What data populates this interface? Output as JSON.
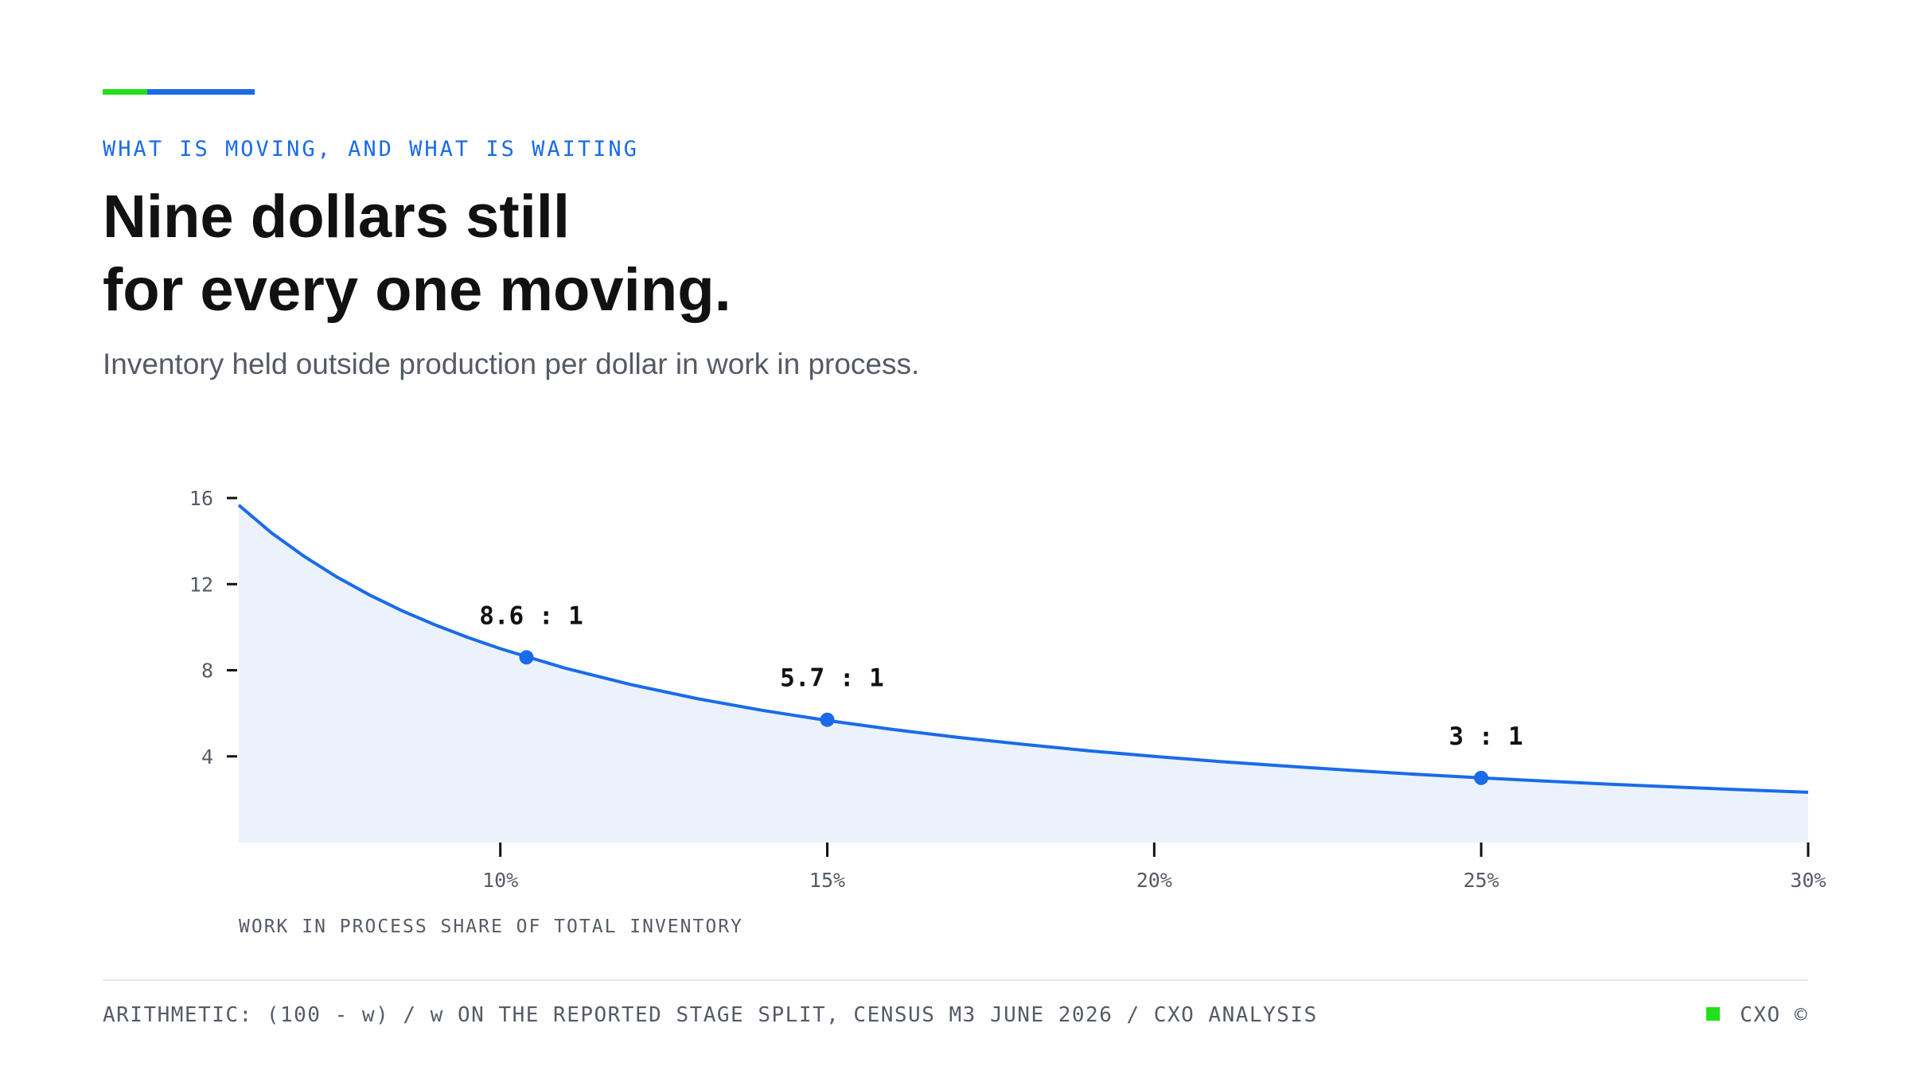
{
  "chart_data": {
    "type": "line",
    "eyebrow": "WHAT IS MOVING, AND WHAT IS WAITING",
    "title": [
      "Nine dollars still",
      "for every one moving."
    ],
    "subtitle": "Inventory held outside production per dollar in work in process.",
    "x_label": "WORK IN PROCESS SHARE OF TOTAL INVENTORY",
    "source": "ARITHMETIC: (100 - w) / w ON THE REPORTED STAGE SPLIT, CENSUS M3 JUNE 2026 / CXO ANALYSIS",
    "brand": "CXO ©",
    "color": "#1a6be8",
    "area_color": "#ebf2fc",
    "x": [
      6,
      6.5,
      7,
      7.5,
      8,
      8.5,
      9,
      9.5,
      10,
      11,
      12,
      13,
      14,
      15,
      16,
      17,
      18,
      19,
      20,
      21,
      22,
      23,
      24,
      25,
      26,
      27,
      28,
      29,
      30
    ],
    "values": [
      15.67,
      14.38,
      13.29,
      12.33,
      11.5,
      10.76,
      10.11,
      9.53,
      9,
      8.09,
      7.33,
      6.69,
      6.14,
      5.67,
      5.25,
      4.88,
      4.56,
      4.26,
      4,
      3.76,
      3.55,
      3.35,
      3.17,
      3,
      2.85,
      2.7,
      2.57,
      2.45,
      2.33
    ],
    "highlights": {
      "x": [
        10.4,
        15,
        25
      ],
      "values": [
        8.6,
        5.7,
        3
      ],
      "value_labels": [
        "8.6 : 1",
        "5.7 : 1",
        "3 : 1"
      ]
    },
    "xlim": [
      6,
      30
    ],
    "ylim": [
      0,
      16
    ],
    "xticks": [
      {
        "value": 10,
        "label": "10%"
      },
      {
        "value": 15,
        "label": "15%"
      },
      {
        "value": 20,
        "label": "20%"
      },
      {
        "value": 25,
        "label": "25%"
      },
      {
        "value": 30,
        "label": "30%"
      }
    ],
    "yticks": [
      4,
      8,
      12,
      16
    ]
  }
}
